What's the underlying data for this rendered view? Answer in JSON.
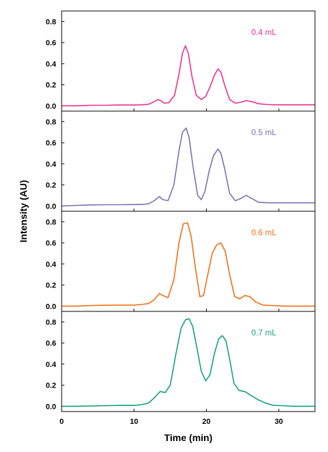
{
  "chart_data": {
    "type": "line",
    "xlabel": "Time (min)",
    "ylabel": "Intensity (AU)",
    "xlim": [
      0,
      35
    ],
    "ylim": [
      -0.05,
      0.9
    ],
    "xticks": [
      "0",
      "10",
      "20",
      "30"
    ],
    "yticks": [
      "0.0",
      "0.2",
      "0.4",
      "0.6",
      "0.8"
    ],
    "grid": false,
    "panels": [
      {
        "label": "0.4 mL",
        "color": "#e8318a",
        "x": [
          0,
          2,
          4,
          6,
          8,
          10,
          11,
          12,
          12.8,
          13.3,
          13.7,
          14.2,
          14.8,
          15.6,
          16.2,
          16.7,
          17.1,
          17.5,
          18.0,
          18.6,
          19.3,
          19.9,
          20.5,
          21.1,
          21.6,
          22.0,
          22.5,
          23.2,
          24.0,
          24.8,
          25.5,
          26.3,
          27.2,
          28.5,
          30,
          32,
          35
        ],
        "values": [
          0.0,
          0.0,
          0.005,
          0.005,
          0.008,
          0.008,
          0.01,
          0.015,
          0.04,
          0.06,
          0.05,
          0.025,
          0.03,
          0.1,
          0.3,
          0.5,
          0.57,
          0.5,
          0.28,
          0.1,
          0.06,
          0.09,
          0.18,
          0.29,
          0.35,
          0.32,
          0.2,
          0.06,
          0.025,
          0.035,
          0.05,
          0.04,
          0.02,
          0.012,
          0.01,
          0.01,
          0.01
        ]
      },
      {
        "label": "0.5 mL",
        "color": "#7b70b2",
        "x": [
          0,
          2,
          4,
          6,
          8,
          10,
          11,
          12,
          12.8,
          13.5,
          14.0,
          14.7,
          15.5,
          16.2,
          16.7,
          17.2,
          17.6,
          18.2,
          18.8,
          19.3,
          19.8,
          20.4,
          21.0,
          21.6,
          22.0,
          22.5,
          23.2,
          24.0,
          24.7,
          25.5,
          26.3,
          27.2,
          28.5,
          30,
          32,
          35
        ],
        "values": [
          0.0,
          0.005,
          0.01,
          0.012,
          0.012,
          0.014,
          0.014,
          0.02,
          0.05,
          0.09,
          0.06,
          0.05,
          0.2,
          0.52,
          0.7,
          0.74,
          0.65,
          0.35,
          0.1,
          0.06,
          0.14,
          0.34,
          0.48,
          0.54,
          0.5,
          0.36,
          0.12,
          0.05,
          0.07,
          0.1,
          0.07,
          0.035,
          0.03,
          0.03,
          0.03,
          0.03
        ]
      },
      {
        "label": "0.6 mL",
        "color": "#f06f14",
        "x": [
          0,
          2,
          4,
          6,
          8,
          10,
          11,
          12,
          12.8,
          13.5,
          14.0,
          14.7,
          15.5,
          16.2,
          16.8,
          17.4,
          17.9,
          18.5,
          19.1,
          19.6,
          20.2,
          20.8,
          21.4,
          22.0,
          22.6,
          23.2,
          23.9,
          24.6,
          25.3,
          26.0,
          26.8,
          27.8,
          29,
          31,
          33,
          35
        ],
        "values": [
          0.0,
          0.0,
          0.005,
          0.008,
          0.01,
          0.01,
          0.015,
          0.025,
          0.06,
          0.12,
          0.1,
          0.08,
          0.25,
          0.6,
          0.78,
          0.79,
          0.66,
          0.35,
          0.09,
          0.1,
          0.3,
          0.5,
          0.58,
          0.6,
          0.52,
          0.3,
          0.09,
          0.07,
          0.1,
          0.09,
          0.04,
          0.01,
          0.005,
          0.0,
          0.0,
          0.0
        ]
      },
      {
        "label": "0.7 mL",
        "color": "#13a07c",
        "x": [
          0,
          2,
          4,
          6,
          8,
          10,
          11,
          12,
          12.8,
          13.6,
          14.3,
          15.0,
          15.8,
          16.5,
          17.1,
          17.6,
          18.1,
          18.7,
          19.3,
          19.9,
          20.5,
          21.1,
          21.7,
          22.2,
          22.7,
          23.2,
          23.8,
          24.5,
          25.3,
          26.2,
          27.2,
          28.2,
          29.2,
          30.5,
          32,
          35
        ],
        "values": [
          0.0,
          0.0,
          0.003,
          0.005,
          0.008,
          0.008,
          0.015,
          0.03,
          0.08,
          0.14,
          0.13,
          0.2,
          0.5,
          0.74,
          0.82,
          0.83,
          0.76,
          0.55,
          0.33,
          0.24,
          0.3,
          0.5,
          0.64,
          0.67,
          0.62,
          0.45,
          0.22,
          0.15,
          0.14,
          0.1,
          0.06,
          0.03,
          0.01,
          0.005,
          0.0,
          0.0
        ]
      }
    ]
  }
}
